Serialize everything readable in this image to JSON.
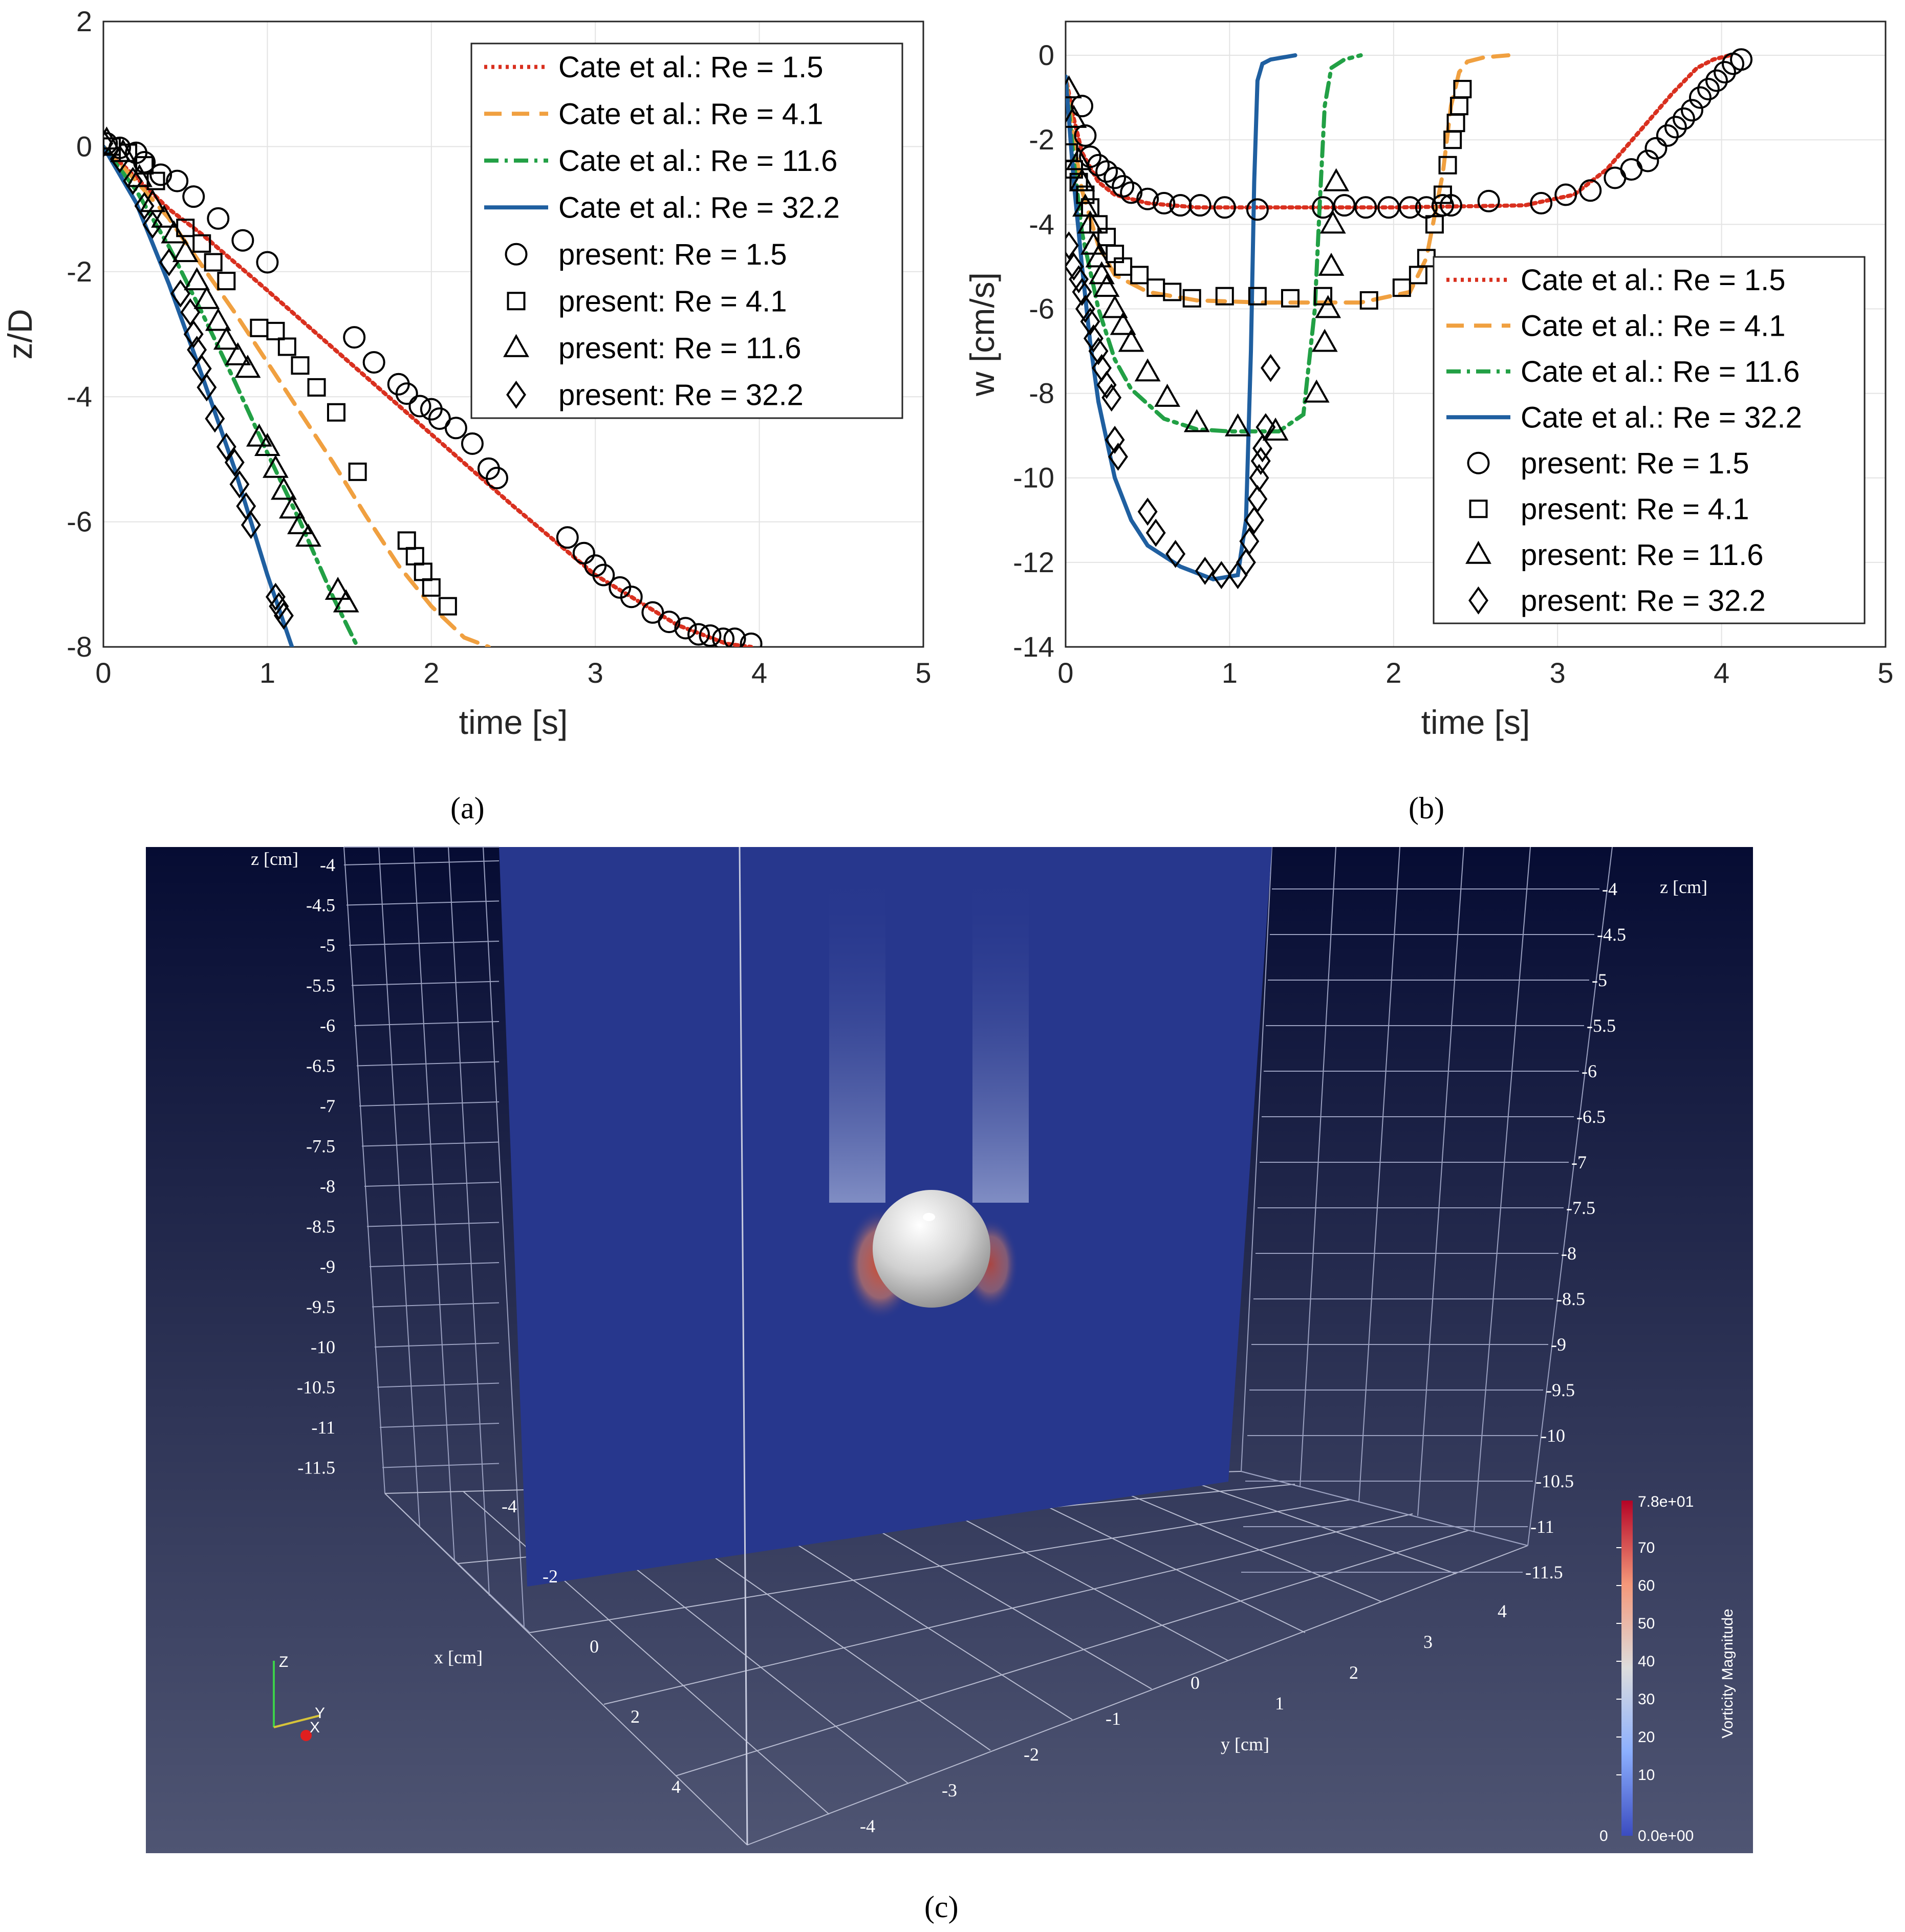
{
  "panel_a": {
    "caption": "(a)",
    "chart_data": {
      "type": "line",
      "xlabel": "time [s]",
      "ylabel": "z/D",
      "xlim": [
        0,
        5
      ],
      "ylim": [
        -8,
        2
      ],
      "xticks": [
        "0",
        "1",
        "2",
        "3",
        "4",
        "5"
      ],
      "yticks": [
        "2",
        "0",
        "-2",
        "-4",
        "-6",
        "-8"
      ],
      "xtick_values": [
        0,
        1,
        2,
        3,
        4,
        5
      ],
      "ytick_values": [
        2,
        0,
        -2,
        -4,
        -6,
        -8
      ],
      "grid": true,
      "legend_position": "top-right",
      "legend": [
        "Cate et al.: Re = 1.5",
        "Cate et al.: Re = 4.1",
        "Cate et al.: Re = 11.6",
        "Cate et al.: Re = 32.2",
        "present: Re = 1.5",
        "present: Re = 4.1",
        "present: Re = 11.6",
        "present: Re = 32.2"
      ],
      "lines": [
        {
          "name": "Cate et al.: Re = 1.5",
          "color": "#d9301f",
          "style": "dotted",
          "x": [
            0,
            0.2,
            0.4,
            0.6,
            0.8,
            1.0,
            1.5,
            2.0,
            2.5,
            3.0,
            3.5,
            3.8,
            3.95
          ],
          "y": [
            0,
            -0.5,
            -1.0,
            -1.4,
            -1.85,
            -2.3,
            -3.45,
            -4.6,
            -5.75,
            -6.85,
            -7.65,
            -7.95,
            -8.0
          ]
        },
        {
          "name": "Cate et al.: Re = 4.1",
          "color": "#f0a040",
          "style": "dashed",
          "x": [
            0,
            0.2,
            0.4,
            0.6,
            0.8,
            1.0,
            1.2,
            1.4,
            1.6,
            1.8,
            2.0,
            2.2,
            2.35
          ],
          "y": [
            0,
            -0.55,
            -1.15,
            -1.9,
            -2.65,
            -3.45,
            -4.25,
            -5.05,
            -5.9,
            -6.7,
            -7.35,
            -7.85,
            -8.0
          ]
        },
        {
          "name": "Cate et al.: Re = 11.6",
          "color": "#22a045",
          "style": "dashdot",
          "x": [
            0,
            0.2,
            0.4,
            0.6,
            0.8,
            1.0,
            1.2,
            1.4,
            1.55
          ],
          "y": [
            0,
            -0.7,
            -1.6,
            -2.65,
            -3.75,
            -4.9,
            -6.0,
            -7.2,
            -8.0
          ]
        },
        {
          "name": "Cate et al.: Re = 32.2",
          "color": "#1f5fa0",
          "style": "solid",
          "x": [
            0,
            0.2,
            0.4,
            0.6,
            0.8,
            1.0,
            1.15
          ],
          "y": [
            0,
            -0.9,
            -2.2,
            -3.65,
            -5.15,
            -6.85,
            -8.0
          ]
        }
      ],
      "markers": [
        {
          "name": "present: Re = 1.5",
          "symbol": "circle",
          "x": [
            0.02,
            0.1,
            0.2,
            0.25,
            0.35,
            0.45,
            0.55,
            0.7,
            0.85,
            1.0,
            1.53,
            1.65,
            1.8,
            1.85,
            1.93,
            2.0,
            2.05,
            2.15,
            2.25,
            2.35,
            2.4,
            2.83,
            2.93,
            3.0,
            3.05,
            3.15,
            3.22,
            3.35,
            3.45,
            3.55,
            3.63,
            3.7,
            3.78,
            3.85,
            3.95
          ],
          "y": [
            0.05,
            -0.02,
            -0.1,
            -0.25,
            -0.45,
            -0.55,
            -0.8,
            -1.15,
            -1.5,
            -1.85,
            -3.05,
            -3.45,
            -3.8,
            -3.95,
            -4.15,
            -4.2,
            -4.35,
            -4.5,
            -4.75,
            -5.15,
            -5.3,
            -6.25,
            -6.5,
            -6.7,
            -6.85,
            -7.05,
            -7.2,
            -7.45,
            -7.6,
            -7.7,
            -7.8,
            -7.82,
            -7.87,
            -7.87,
            -7.95
          ]
        },
        {
          "name": "present: Re = 4.1",
          "symbol": "square",
          "x": [
            0.05,
            0.15,
            0.25,
            0.32,
            0.5,
            0.6,
            0.67,
            0.75,
            0.95,
            1.05,
            1.12,
            1.2,
            1.3,
            1.42,
            1.55,
            1.85,
            1.9,
            1.95,
            2.0,
            2.1
          ],
          "y": [
            0,
            -0.1,
            -0.3,
            -0.55,
            -1.3,
            -1.55,
            -1.85,
            -2.15,
            -2.9,
            -2.95,
            -3.2,
            -3.5,
            -3.85,
            -4.25,
            -5.2,
            -6.3,
            -6.55,
            -6.8,
            -7.05,
            -7.35
          ]
        },
        {
          "name": "present: Re = 11.6",
          "symbol": "triangle",
          "x": [
            0.02,
            0.12,
            0.22,
            0.3,
            0.37,
            0.43,
            0.5,
            0.57,
            0.63,
            0.7,
            0.75,
            0.82,
            0.88,
            0.95,
            1.0,
            1.05,
            1.1,
            1.15,
            1.2,
            1.25,
            1.43,
            1.48
          ],
          "y": [
            0.1,
            -0.1,
            -0.5,
            -0.9,
            -1.15,
            -1.4,
            -1.7,
            -2.15,
            -2.45,
            -2.8,
            -3.1,
            -3.35,
            -3.55,
            -4.65,
            -4.8,
            -5.15,
            -5.5,
            -5.8,
            -6.05,
            -6.25,
            -7.1,
            -7.3
          ]
        },
        {
          "name": "present: Re = 32.2",
          "symbol": "diamond",
          "x": [
            0.0,
            0.1,
            0.18,
            0.25,
            0.3,
            0.4,
            0.47,
            0.53,
            0.55,
            0.57,
            0.6,
            0.63,
            0.68,
            0.75,
            0.8,
            0.83,
            0.87,
            0.9,
            1.05,
            1.07,
            1.1
          ],
          "y": [
            0.05,
            -0.2,
            -0.55,
            -0.95,
            -1.25,
            -1.85,
            -2.35,
            -2.65,
            -3.0,
            -3.25,
            -3.55,
            -3.85,
            -4.35,
            -4.8,
            -5.05,
            -5.4,
            -5.75,
            -6.05,
            -7.2,
            -7.35,
            -7.5
          ]
        }
      ]
    }
  },
  "panel_b": {
    "caption": "(b)",
    "chart_data": {
      "type": "line",
      "xlabel": "time [s]",
      "ylabel": "w [cm/s]",
      "xlim": [
        0,
        5
      ],
      "ylim": [
        -14,
        0.8
      ],
      "xticks": [
        "0",
        "1",
        "2",
        "3",
        "4",
        "5"
      ],
      "yticks": [
        "0",
        "-2",
        "-4",
        "-6",
        "-8",
        "-10",
        "-12",
        "-14"
      ],
      "xtick_values": [
        0,
        1,
        2,
        3,
        4,
        5
      ],
      "ytick_values": [
        0,
        -2,
        -4,
        -6,
        -8,
        -10,
        -12,
        -14
      ],
      "grid": true,
      "legend_position": "center-right",
      "legend": [
        "Cate et al.: Re = 1.5",
        "Cate et al.: Re = 4.1",
        "Cate et al.: Re = 11.6",
        "Cate et al.: Re = 32.2",
        "present: Re = 1.5",
        "present: Re = 4.1",
        "present: Re = 11.6",
        "present: Re = 32.2"
      ],
      "lines": [
        {
          "name": "Cate et al.: Re = 1.5",
          "color": "#d9301f",
          "style": "dotted",
          "x": [
            0,
            0.05,
            0.1,
            0.2,
            0.3,
            0.5,
            0.8,
            1.2,
            2.0,
            2.8,
            3.1,
            3.3,
            3.5,
            3.7,
            3.85,
            3.95,
            4.05
          ],
          "y": [
            -0.5,
            -1.5,
            -2.3,
            -3.0,
            -3.3,
            -3.5,
            -3.6,
            -3.6,
            -3.6,
            -3.55,
            -3.3,
            -2.7,
            -1.8,
            -0.9,
            -0.3,
            -0.1,
            0
          ]
        },
        {
          "name": "Cate et al.: Re = 4.1",
          "color": "#f0a040",
          "style": "dashed",
          "x": [
            0,
            0.05,
            0.1,
            0.2,
            0.3,
            0.5,
            0.8,
            1.2,
            1.8,
            2.1,
            2.2,
            2.3,
            2.35,
            2.4,
            2.45,
            2.55,
            2.7
          ],
          "y": [
            -0.5,
            -2.0,
            -3.2,
            -4.5,
            -5.2,
            -5.6,
            -5.8,
            -5.85,
            -5.85,
            -5.6,
            -4.8,
            -2.8,
            -1.2,
            -0.4,
            -0.15,
            -0.05,
            0
          ]
        },
        {
          "name": "Cate et al.: Re = 11.6",
          "color": "#22a045",
          "style": "dashdot",
          "x": [
            0,
            0.05,
            0.1,
            0.2,
            0.3,
            0.4,
            0.6,
            0.8,
            1.0,
            1.3,
            1.45,
            1.52,
            1.55,
            1.58,
            1.62,
            1.7,
            1.8
          ],
          "y": [
            -0.5,
            -2.5,
            -4.2,
            -6.0,
            -7.2,
            -7.9,
            -8.6,
            -8.85,
            -8.9,
            -8.9,
            -8.5,
            -6.0,
            -3.5,
            -1.2,
            -0.3,
            -0.1,
            0
          ]
        },
        {
          "name": "Cate et al.: Re = 32.2",
          "color": "#1f5fa0",
          "style": "solid",
          "x": [
            0,
            0.05,
            0.1,
            0.15,
            0.2,
            0.3,
            0.4,
            0.5,
            0.7,
            0.9,
            1.05,
            1.1,
            1.13,
            1.15,
            1.17,
            1.2,
            1.25,
            1.4
          ],
          "y": [
            -0.5,
            -3.0,
            -5.0,
            -6.8,
            -8.2,
            -10.0,
            -11.0,
            -11.6,
            -12.1,
            -12.4,
            -12.3,
            -11.0,
            -7.0,
            -3.0,
            -0.6,
            -0.2,
            -0.1,
            0
          ]
        }
      ],
      "markers": [
        {
          "name": "present: Re = 1.5",
          "symbol": "circle",
          "x": [
            0.1,
            0.12,
            0.15,
            0.2,
            0.25,
            0.3,
            0.35,
            0.4,
            0.5,
            0.6,
            0.7,
            0.82,
            0.97,
            1.17,
            1.57,
            1.7,
            1.83,
            1.97,
            2.1,
            2.2,
            2.3,
            2.35,
            2.58,
            2.9,
            3.05,
            3.2,
            3.35,
            3.45,
            3.55,
            3.6,
            3.67,
            3.72,
            3.77,
            3.82,
            3.87,
            3.92,
            3.97,
            4.02,
            4.07,
            4.12
          ],
          "y": [
            -1.2,
            -1.9,
            -2.4,
            -2.6,
            -2.75,
            -2.9,
            -3.1,
            -3.25,
            -3.4,
            -3.5,
            -3.55,
            -3.55,
            -3.6,
            -3.65,
            -3.6,
            -3.55,
            -3.6,
            -3.6,
            -3.6,
            -3.6,
            -3.55,
            -3.55,
            -3.45,
            -3.5,
            -3.3,
            -3.2,
            -2.9,
            -2.7,
            -2.5,
            -2.2,
            -1.9,
            -1.7,
            -1.5,
            -1.3,
            -1.0,
            -0.8,
            -0.6,
            -0.4,
            -0.2,
            -0.1
          ]
        },
        {
          "name": "present: Re = 4.1",
          "symbol": "square",
          "x": [
            0.02,
            0.05,
            0.08,
            0.12,
            0.15,
            0.2,
            0.25,
            0.3,
            0.35,
            0.45,
            0.55,
            0.65,
            0.77,
            0.97,
            1.17,
            1.37,
            1.57,
            1.85,
            2.05,
            2.15,
            2.2,
            2.25,
            2.3,
            2.33,
            2.36,
            2.38,
            2.4,
            2.42
          ],
          "y": [
            -2.3,
            -2.7,
            -3.0,
            -3.3,
            -3.6,
            -4.0,
            -4.3,
            -4.7,
            -5.0,
            -5.2,
            -5.5,
            -5.6,
            -5.75,
            -5.7,
            -5.7,
            -5.75,
            -5.7,
            -5.8,
            -5.5,
            -5.2,
            -4.8,
            -4.0,
            -3.3,
            -2.6,
            -2.0,
            -1.6,
            -1.2,
            -0.8
          ]
        },
        {
          "name": "present: Re = 11.6",
          "symbol": "triangle",
          "x": [
            0.02,
            0.05,
            0.08,
            0.1,
            0.12,
            0.15,
            0.17,
            0.2,
            0.22,
            0.25,
            0.3,
            0.35,
            0.4,
            0.5,
            0.62,
            0.8,
            1.05,
            1.28,
            1.53,
            1.58,
            1.6,
            1.62,
            1.63,
            1.65
          ],
          "y": [
            -0.8,
            -1.5,
            -2.5,
            -3.0,
            -3.6,
            -4.0,
            -4.5,
            -4.8,
            -5.2,
            -5.5,
            -6.0,
            -6.4,
            -6.8,
            -7.5,
            -8.1,
            -8.7,
            -8.8,
            -8.9,
            -8.0,
            -6.8,
            -6.0,
            -5.0,
            -4.0,
            -3.0
          ]
        },
        {
          "name": "present: Re = 32.2",
          "symbol": "diamond",
          "x": [
            0.02,
            0.05,
            0.08,
            0.1,
            0.12,
            0.15,
            0.17,
            0.2,
            0.22,
            0.25,
            0.28,
            0.3,
            0.32,
            0.5,
            0.55,
            0.67,
            0.85,
            0.95,
            1.05,
            1.1,
            1.12,
            1.15,
            1.17,
            1.18,
            1.19,
            1.2,
            1.22,
            1.25
          ],
          "y": [
            -4.5,
            -5.0,
            -5.3,
            -5.6,
            -6.0,
            -6.3,
            -6.7,
            -7.0,
            -7.4,
            -7.8,
            -8.1,
            -9.1,
            -9.5,
            -10.8,
            -11.3,
            -11.8,
            -12.2,
            -12.3,
            -12.3,
            -12.0,
            -11.5,
            -11.0,
            -10.5,
            -10.0,
            -9.6,
            -9.3,
            -8.8,
            -7.4
          ]
        }
      ]
    }
  },
  "panel_c": {
    "caption": "(c)",
    "z_axis_label": "z [cm]",
    "x_axis_label": "x [cm]",
    "y_axis_label": "y [cm]",
    "z_ticks_left": [
      "-4",
      "-4.5",
      "-5",
      "-5.5",
      "-6",
      "-6.5",
      "-7",
      "-7.5",
      "-8",
      "-8.5",
      "-9",
      "-9.5",
      "-10",
      "-10.5",
      "-11",
      "-11.5"
    ],
    "z_ticks_right": [
      "-4",
      "-4.5",
      "-5",
      "-5.5",
      "-6",
      "-6.5",
      "-7",
      "-7.5",
      "-8",
      "-8.5",
      "-9",
      "-9.5",
      "-10",
      "-10.5",
      "-11",
      "-11.5"
    ],
    "x_ticks": [
      "-4",
      "-2",
      "0",
      "2",
      "4"
    ],
    "y_ticks_front": [
      "-4",
      "-3",
      "-2",
      "-1",
      "0"
    ],
    "y_ticks_back": [
      "1",
      "2",
      "3",
      "4"
    ],
    "colorbar": {
      "title": "Vorticity Magnitude",
      "max_label": "7.8e+01",
      "min_label": "0.0e+00",
      "zero_label": "0",
      "ticks": [
        "70",
        "60",
        "50",
        "40",
        "30",
        "20",
        "10"
      ]
    },
    "orientation_axes": {
      "z": "Z",
      "y": "Y",
      "x": "X"
    },
    "colors": {
      "bg_top": "#0a1238",
      "bg_bottom": "#4f5573",
      "slice": "#27378d",
      "sphere": "#d8d8d8",
      "wake_red": "#c8482c"
    }
  }
}
